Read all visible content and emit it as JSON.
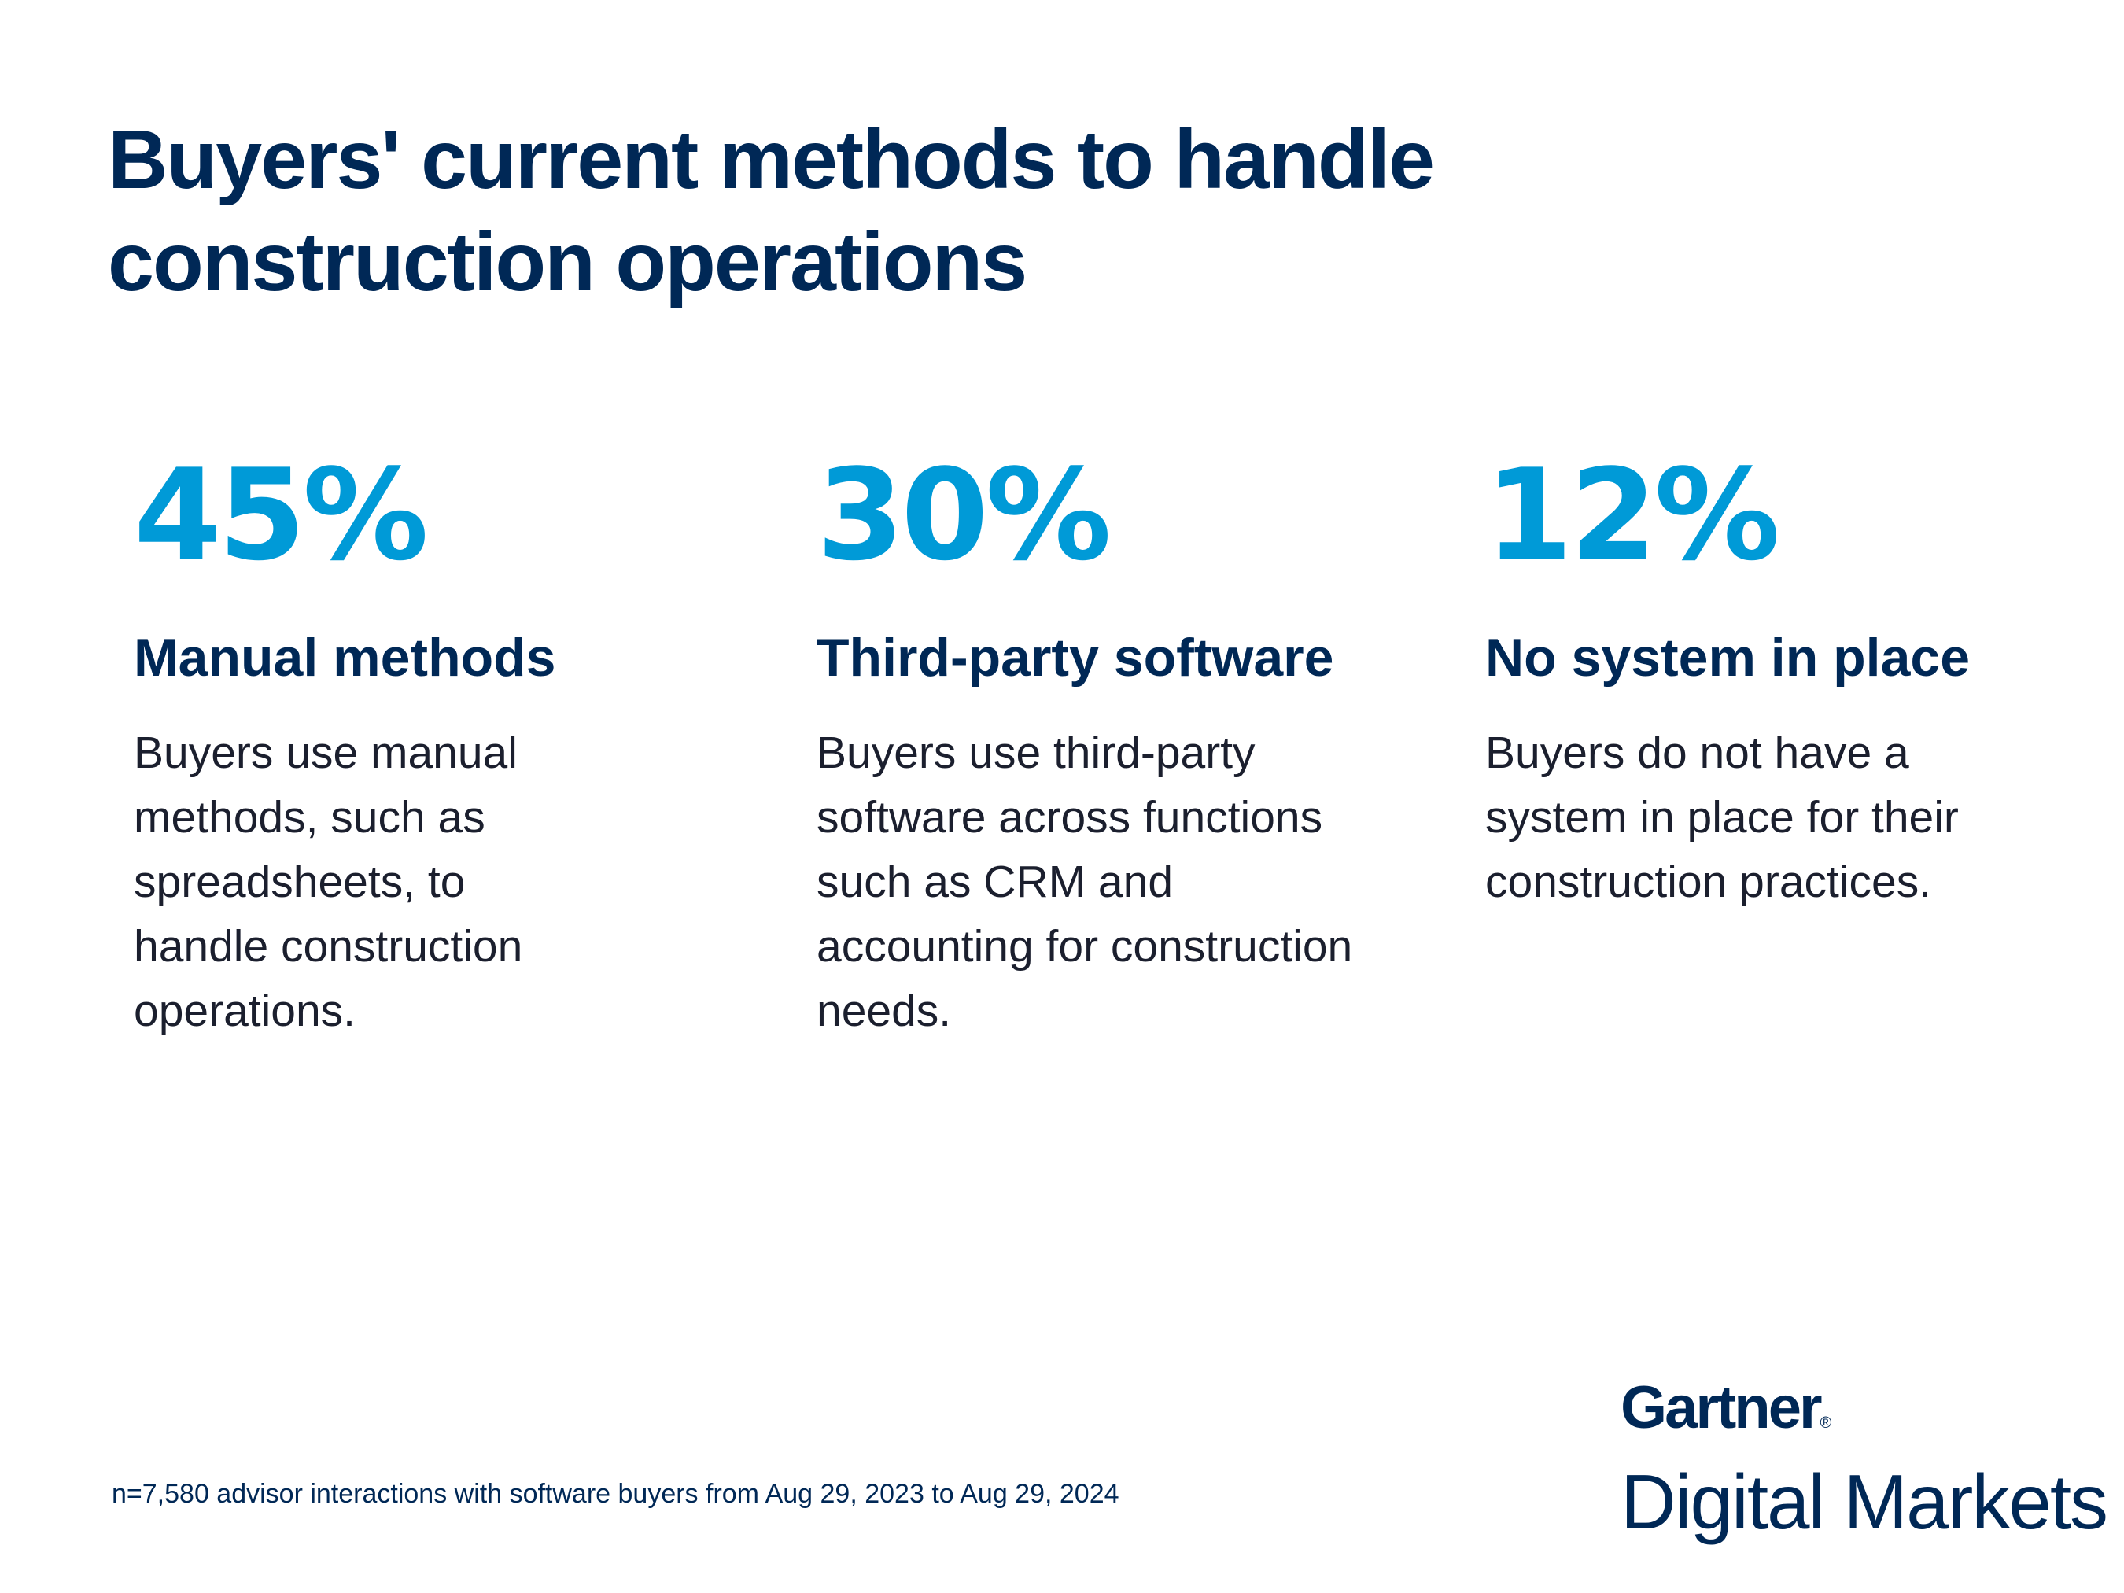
{
  "title": {
    "line1": "Buyers' current methods to handle",
    "line2": "construction operations"
  },
  "colors": {
    "accent": "#009ad7",
    "navy": "#002856"
  },
  "stats": [
    {
      "value": "45%",
      "label": "Manual methods",
      "description": "Buyers use manual methods, such as spreadsheets, to handle construction operations."
    },
    {
      "value": "30%",
      "label": "Third-party software",
      "description": "Buyers use third-party software across functions such as CRM and accounting for construction needs."
    },
    {
      "value": "12%",
      "label": "No system in place",
      "description": "Buyers do not have a system in place for their construction practices."
    }
  ],
  "footnote": "n=7,580 advisor interactions with software buyers from Aug 29, 2023 to Aug 29, 2024",
  "logo": {
    "brand": "Gartner",
    "registered": "®",
    "product": "Digital Markets"
  }
}
